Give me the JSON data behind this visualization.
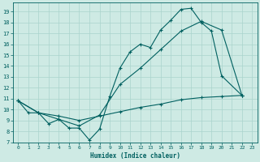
{
  "xlabel": "Humidex (Indice chaleur)",
  "xlim": [
    -0.5,
    23.5
  ],
  "ylim": [
    7,
    19.8
  ],
  "yticks": [
    7,
    8,
    9,
    10,
    11,
    12,
    13,
    14,
    15,
    16,
    17,
    18,
    19
  ],
  "xticks": [
    0,
    1,
    2,
    3,
    4,
    5,
    6,
    7,
    8,
    9,
    10,
    11,
    12,
    13,
    14,
    15,
    16,
    17,
    18,
    19,
    20,
    21,
    22,
    23
  ],
  "bg_color": "#ceeae4",
  "line_color": "#006060",
  "grid_color": "#aad4cc",
  "line1_x": [
    0,
    1,
    2,
    3,
    4,
    5,
    6,
    7,
    8,
    9,
    10,
    11,
    12,
    13,
    14,
    15,
    16,
    17,
    18,
    19,
    20,
    22
  ],
  "line1_y": [
    10.8,
    9.7,
    9.7,
    8.7,
    9.1,
    8.3,
    8.3,
    7.2,
    8.2,
    11.2,
    13.8,
    15.3,
    16.0,
    15.7,
    17.3,
    18.2,
    19.2,
    19.3,
    18.0,
    17.2,
    13.1,
    11.3
  ],
  "line2_x": [
    0,
    2,
    4,
    6,
    8,
    10,
    12,
    14,
    16,
    18,
    20,
    22
  ],
  "line2_y": [
    10.8,
    9.7,
    9.1,
    8.5,
    9.5,
    12.3,
    13.8,
    15.5,
    17.2,
    18.1,
    17.3,
    11.3
  ],
  "line3_x": [
    0,
    2,
    4,
    6,
    8,
    10,
    12,
    14,
    16,
    18,
    20,
    22
  ],
  "line3_y": [
    10.8,
    9.7,
    9.4,
    9.0,
    9.4,
    9.8,
    10.2,
    10.5,
    10.9,
    11.1,
    11.2,
    11.3
  ]
}
